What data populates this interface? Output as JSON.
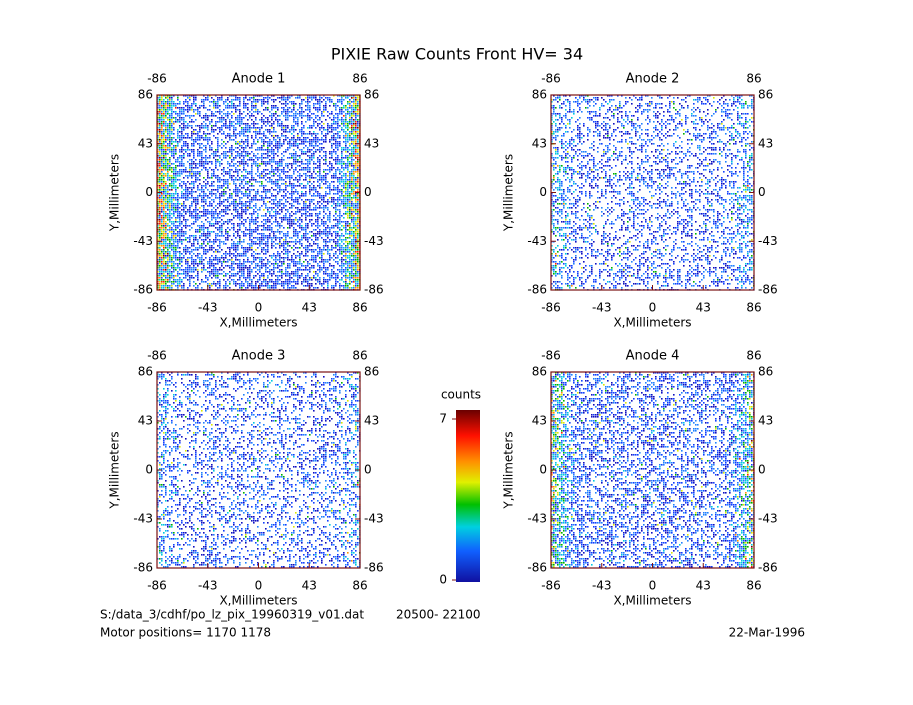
{
  "title": "PIXIE Raw Counts Front HV= 34",
  "chart_data": [
    {
      "type": "heatmap",
      "title": "Anode 1",
      "xlabel": "X,Millimeters",
      "ylabel": "Y,Millimeters",
      "xlim": [
        -86,
        86
      ],
      "ylim": [
        -86,
        86
      ],
      "xticks": [
        -86,
        -43,
        0,
        43,
        86
      ],
      "yticks": [
        -86,
        -43,
        0,
        43,
        86
      ]
    },
    {
      "type": "heatmap",
      "title": "Anode 2",
      "xlabel": "X,Millimeters",
      "ylabel": "Y,Millimeters",
      "xlim": [
        -86,
        86
      ],
      "ylim": [
        -86,
        86
      ],
      "xticks": [
        -86,
        -43,
        0,
        43,
        86
      ],
      "yticks": [
        -86,
        -43,
        0,
        43,
        86
      ]
    },
    {
      "type": "heatmap",
      "title": "Anode 3",
      "xlabel": "X,Millimeters",
      "ylabel": "Y,Millimeters",
      "xlim": [
        -86,
        86
      ],
      "ylim": [
        -86,
        86
      ],
      "xticks": [
        -86,
        -43,
        0,
        43,
        86
      ],
      "yticks": [
        -86,
        -43,
        0,
        43,
        86
      ]
    },
    {
      "type": "heatmap",
      "title": "Anode 4",
      "xlabel": "X,Millimeters",
      "ylabel": "Y,Millimeters",
      "xlim": [
        -86,
        86
      ],
      "ylim": [
        -86,
        86
      ],
      "xticks": [
        -86,
        -43,
        0,
        43,
        86
      ],
      "yticks": [
        -86,
        -43,
        0,
        43,
        86
      ]
    }
  ],
  "colorbar": {
    "label": "counts",
    "clim": [
      0,
      7
    ],
    "ticks": [
      0,
      7
    ]
  },
  "footer": {
    "file": "S:/data_3/cdhf/po_lz_pix_19960319_v01.dat",
    "range": "20500- 22100",
    "motor": "Motor positions= 1170 1178",
    "date": "22-Mar-1996"
  }
}
